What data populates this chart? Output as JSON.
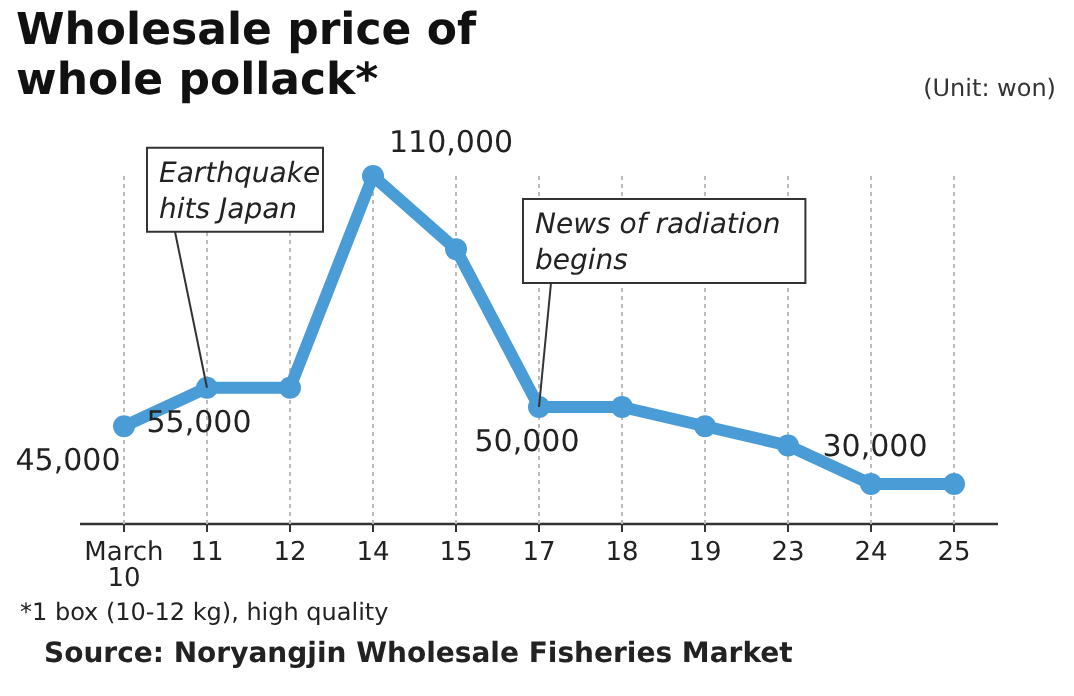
{
  "chart_data": {
    "type": "line",
    "title": "Wholesale price of whole pollack*",
    "subtitle": "(Unit: won)",
    "categories": [
      "March 10",
      "11",
      "12",
      "14",
      "15",
      "17",
      "18",
      "19",
      "23",
      "24",
      "25"
    ],
    "series": [
      {
        "color": "#4a9cd6",
        "values": [
          45000,
          55000,
          55000,
          110000,
          91000,
          50000,
          50000,
          45000,
          40000,
          30000,
          30000
        ],
        "value_labels": [
          "45,000",
          "55,000",
          null,
          "110,000",
          null,
          "50,000",
          null,
          null,
          null,
          "30,000",
          null
        ]
      }
    ],
    "marker": "circle",
    "grid": "x",
    "annotations": [
      {
        "text": "Earthquake hits Japan",
        "x": "11",
        "y": 55000
      },
      {
        "text": "News of radiation begins",
        "x": "17",
        "y": 50000
      },
      "*1 box (10-12 kg), high quality",
      "Source: Noryangjin Wholesale Fisheries Market"
    ]
  }
}
